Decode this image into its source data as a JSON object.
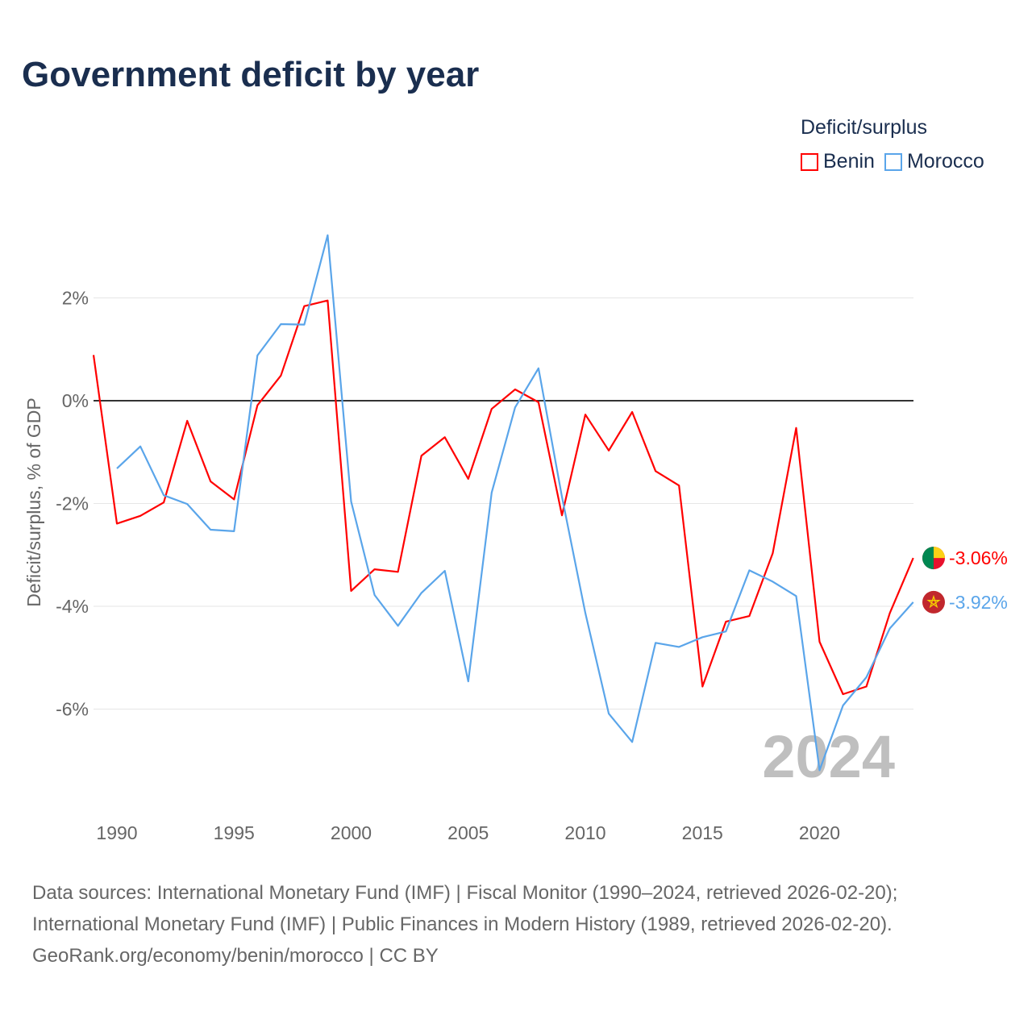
{
  "title": "Government deficit by year",
  "legend": {
    "title": "Deficit/surplus",
    "items": [
      {
        "name": "Benin",
        "color": "#ff0000"
      },
      {
        "name": "Morocco",
        "color": "#5aa5ea"
      }
    ]
  },
  "year_label": "2024",
  "end_labels": {
    "benin": "-3.06%",
    "morocco": "-3.92%"
  },
  "source_lines": [
    "Data sources: International Monetary Fund (IMF) | Fiscal Monitor (1990–2024, retrieved 2026-02-20);",
    "International Monetary Fund (IMF) | Public Finances in Modern History (1989, retrieved 2026-02-20).",
    "GeoRank.org/economy/benin/morocco | CC BY"
  ],
  "chart_data": {
    "type": "line",
    "title": "Government deficit by year",
    "xlabel": "",
    "ylabel": "Deficit/surplus, % of GDP",
    "xlim": [
      1989,
      2024
    ],
    "ylim": [
      -7.5,
      3.4
    ],
    "grid": true,
    "legend_position": "top-right",
    "x_ticks": [
      "1990",
      "1995",
      "2000",
      "2005",
      "2010",
      "2015",
      "2020"
    ],
    "y_ticks": [
      {
        "value": 2,
        "label": "2%"
      },
      {
        "value": 0,
        "label": "0%"
      },
      {
        "value": -2,
        "label": "-2%"
      },
      {
        "value": -4,
        "label": "-4%"
      },
      {
        "value": -6,
        "label": "-6%"
      }
    ],
    "series": [
      {
        "name": "Benin",
        "color": "#ff0000",
        "x_start": 1989,
        "values": [
          0.89,
          -2.39,
          -2.24,
          -1.98,
          -0.39,
          -1.57,
          -1.92,
          -0.09,
          0.49,
          1.84,
          1.95,
          -3.7,
          -3.28,
          -3.33,
          -1.07,
          -0.71,
          -1.52,
          -0.16,
          0.22,
          -0.03,
          -2.23,
          -0.27,
          -0.97,
          -0.22,
          -1.37,
          -1.65,
          -5.56,
          -4.3,
          -4.19,
          -2.97,
          -0.53,
          -4.69,
          -5.71,
          -5.56,
          -4.13,
          -3.06
        ]
      },
      {
        "name": "Morocco",
        "color": "#5aa5ea",
        "x_start": 1990,
        "values": [
          -1.32,
          -0.89,
          -1.84,
          -2.01,
          -2.51,
          -2.54,
          0.88,
          1.49,
          1.48,
          3.22,
          -1.96,
          -3.78,
          -4.38,
          -3.74,
          -3.31,
          -5.46,
          -1.79,
          -0.13,
          0.63,
          -1.87,
          -4.13,
          -6.09,
          -6.64,
          -4.71,
          -4.79,
          -4.6,
          -4.49,
          -3.3,
          -3.52,
          -3.8,
          -7.19,
          -5.93,
          -5.38,
          -4.43,
          -3.92
        ]
      }
    ]
  }
}
